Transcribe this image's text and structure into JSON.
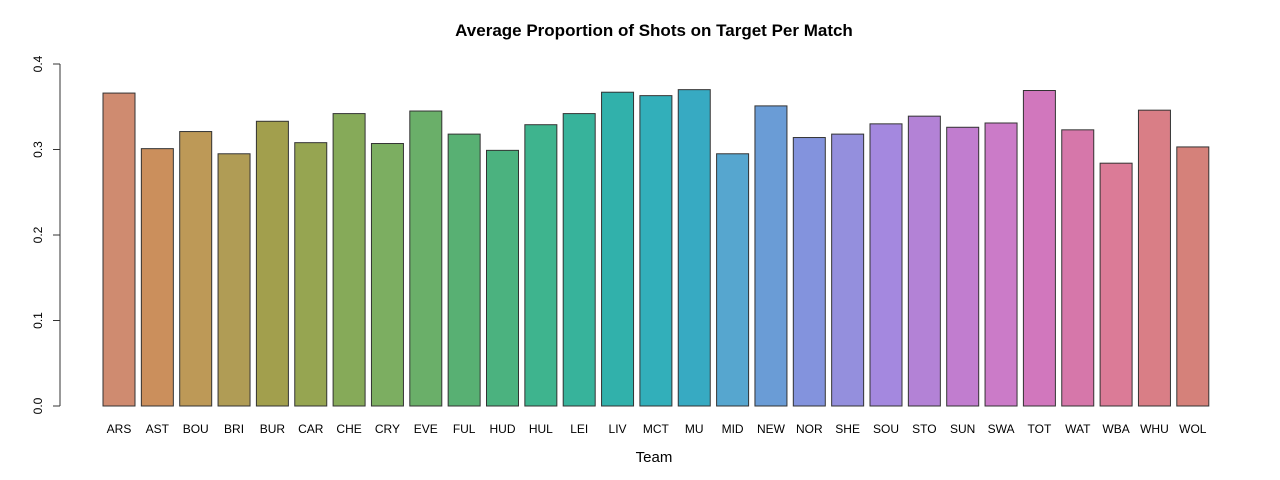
{
  "chart_data": {
    "type": "bar",
    "title": "Average Proportion of Shots on Target Per Match",
    "xlabel": "Team",
    "ylabel": "",
    "ylim": [
      0,
      0.4
    ],
    "yticks": [
      "0.0",
      "0.1",
      "0.2",
      "0.3",
      "0.4"
    ],
    "grid": false,
    "legend": "none",
    "categories": [
      "ARS",
      "AST",
      "BOU",
      "BRI",
      "BUR",
      "CAR",
      "CHE",
      "CRY",
      "EVE",
      "FUL",
      "HUD",
      "HUL",
      "LEI",
      "LIV",
      "MCT",
      "MU",
      "MID",
      "NEW",
      "NOR",
      "SHE",
      "SOU",
      "STO",
      "SUN",
      "SWA",
      "TOT",
      "WAT",
      "WBA",
      "WHU",
      "WOL"
    ],
    "values": [
      0.366,
      0.301,
      0.321,
      0.295,
      0.333,
      0.308,
      0.342,
      0.307,
      0.345,
      0.318,
      0.299,
      0.329,
      0.342,
      0.367,
      0.363,
      0.37,
      0.295,
      0.351,
      0.314,
      0.318,
      0.33,
      0.339,
      0.326,
      0.331,
      0.369,
      0.323,
      0.284,
      0.346,
      0.303
    ],
    "colors": [
      "#CF8B70",
      "#CB8F5C",
      "#BD9957",
      "#B09C55",
      "#A29F4D",
      "#96A551",
      "#86AA59",
      "#7CAE61",
      "#6AAF69",
      "#58B073",
      "#4BB27F",
      "#3EB48E",
      "#37B39B",
      "#31B1AB",
      "#32AFBA",
      "#37AAC2",
      "#56A6CF",
      "#6A9CD6",
      "#8393DD",
      "#948FDD",
      "#A488DF",
      "#B382D6",
      "#C17DCF",
      "#CB7BC8",
      "#D177BD",
      "#D677AA",
      "#DB7B97",
      "#D97E86",
      "#D5817A"
    ]
  }
}
